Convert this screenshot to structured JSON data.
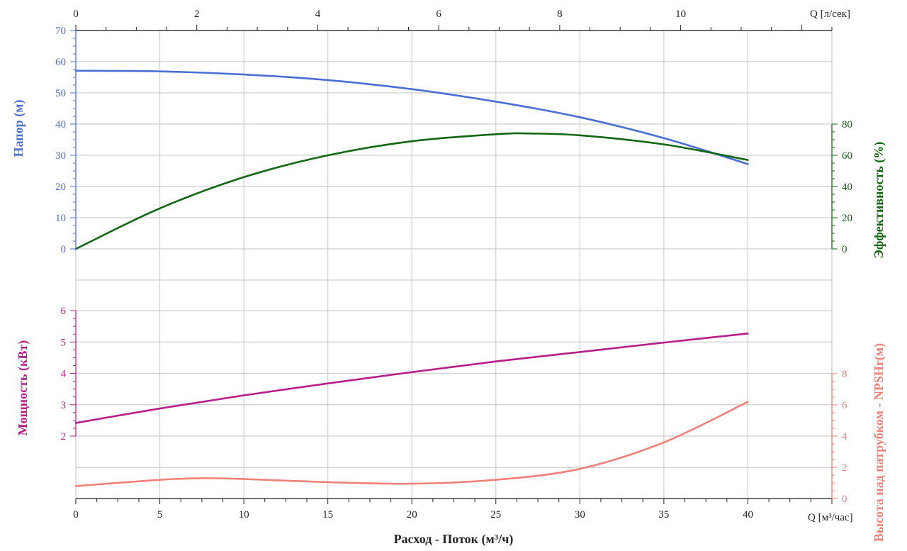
{
  "chart_data": {
    "type": "line",
    "x_axis_bottom": {
      "label": "Расход - Поток (м³/ч)",
      "unit_label": "Q [м³/час]",
      "range": [
        0,
        45
      ],
      "ticks": [
        "0",
        "5",
        "10",
        "15",
        "20",
        "25",
        "30",
        "35",
        "40"
      ]
    },
    "x_axis_top": {
      "unit_label": "Q [л/сек]",
      "range": [
        0,
        12.5
      ],
      "ticks": [
        "0",
        "2",
        "4",
        "6",
        "8",
        "10"
      ]
    },
    "panels": [
      {
        "name": "upper",
        "y_left": {
          "label": "Напор (м)",
          "range": [
            0,
            70
          ],
          "ticks": [
            "0",
            "10",
            "20",
            "30",
            "40",
            "50",
            "60",
            "70"
          ],
          "color": "#4a6fd4"
        },
        "y_right": {
          "label": "Эффективность (%)",
          "range": [
            0,
            80
          ],
          "ticks": [
            "0",
            "20",
            "40",
            "60",
            "80"
          ],
          "color": "#116611"
        },
        "series": [
          {
            "axis": "left",
            "color": "#4a6fd4",
            "x": [
              0,
              5,
              10,
              15,
              20,
              25,
              30,
              35,
              40
            ],
            "y": [
              57.1,
              56.9,
              55.9,
              54.1,
              51.2,
              47.2,
              42.2,
              35.5,
              27.2
            ]
          },
          {
            "axis": "right",
            "color": "#116611",
            "x": [
              0,
              5,
              10,
              15,
              20,
              25,
              27,
              30,
              35,
              40
            ],
            "y": [
              0,
              26,
              46,
              60,
              69,
              73.5,
              74,
              72.8,
              67,
              57
            ]
          }
        ]
      },
      {
        "name": "lower",
        "y_left": {
          "label": "Мощность (кВт)",
          "range": [
            0,
            6.5
          ],
          "ticks": [
            "2",
            "3",
            "4",
            "5",
            "6"
          ],
          "color": "#b81e88"
        },
        "y_right": {
          "label": "Высота над патрубком - NPSHr(м)",
          "range": [
            0,
            10
          ],
          "ticks": [
            "0",
            "2",
            "4",
            "6",
            "8"
          ],
          "color": "#f08078"
        },
        "series": [
          {
            "axis": "left",
            "color": "#b81e88",
            "x": [
              0,
              5,
              10,
              15,
              20,
              25,
              30,
              35,
              40
            ],
            "y": [
              2.42,
              2.88,
              3.3,
              3.68,
              4.04,
              4.38,
              4.68,
              4.98,
              5.27
            ]
          },
          {
            "axis": "right",
            "color": "#f08078",
            "x": [
              0,
              5,
              7.5,
              10,
              15,
              20,
              25,
              30,
              35,
              40
            ],
            "y": [
              0.8,
              1.2,
              1.3,
              1.25,
              1.05,
              0.95,
              1.2,
              1.9,
              3.6,
              6.2
            ]
          }
        ]
      }
    ],
    "grid": true
  }
}
